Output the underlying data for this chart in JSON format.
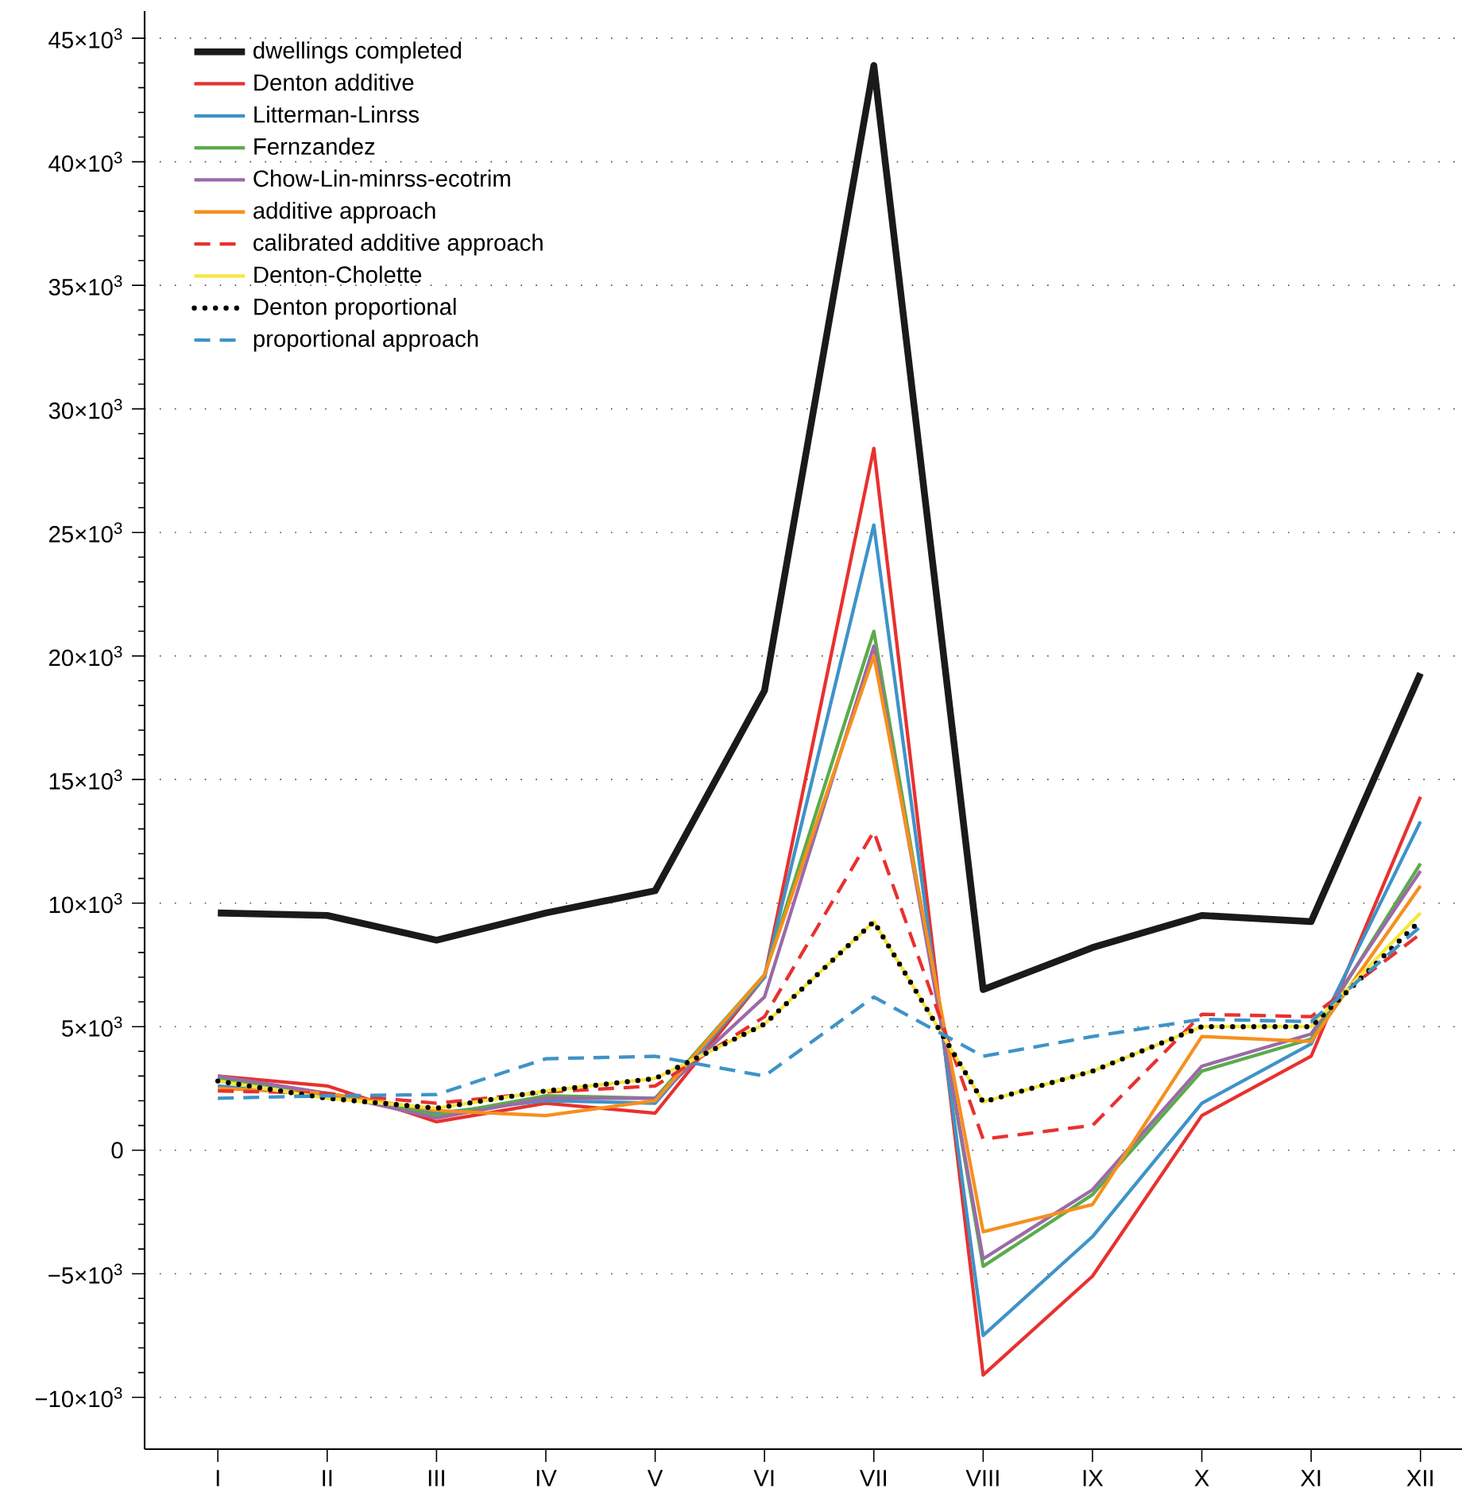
{
  "chart_data": {
    "type": "line",
    "categories": [
      "I",
      "II",
      "III",
      "IV",
      "V",
      "VI",
      "VII",
      "VIII",
      "IX",
      "X",
      "XI",
      "XII"
    ],
    "series": [
      {
        "name": "dwellings completed",
        "color": "#1a1a1a",
        "line_style": "solid",
        "values": [
          9600,
          9500,
          8500,
          9600,
          10500,
          18600,
          43900,
          6500,
          8200,
          9500,
          9250,
          19300
        ]
      },
      {
        "name": "Denton additive",
        "color": "#e8312f",
        "line_style": "solid",
        "values": [
          3000,
          2600,
          1150,
          1900,
          1500,
          7000,
          28400,
          -9100,
          -5100,
          1400,
          3800,
          14300
        ]
      },
      {
        "name": "Litterman-Linrss",
        "color": "#3e93c8",
        "line_style": "solid",
        "values": [
          2600,
          2200,
          1500,
          2000,
          1900,
          7000,
          25300,
          -7500,
          -3500,
          1900,
          4300,
          13300
        ]
      },
      {
        "name": "Fernzandez",
        "color": "#5bab4b",
        "line_style": "solid",
        "values": [
          2900,
          2300,
          1400,
          2200,
          2100,
          7100,
          21000,
          -4700,
          -1800,
          3200,
          4500,
          11600
        ]
      },
      {
        "name": "Chow-Lin-minrss-ecotrim",
        "color": "#9b6aa8",
        "line_style": "solid",
        "values": [
          3000,
          2300,
          1300,
          2100,
          2100,
          6200,
          20400,
          -4400,
          -1600,
          3400,
          4700,
          11300
        ]
      },
      {
        "name": "additive approach",
        "color": "#f5901e",
        "line_style": "solid",
        "values": [
          2500,
          2300,
          1600,
          1400,
          2000,
          7100,
          20000,
          -3300,
          -2200,
          4600,
          4400,
          10700
        ]
      },
      {
        "name": "calibrated additive approach",
        "color": "#e8312f",
        "line_style": "dashed",
        "values": [
          2400,
          2300,
          1900,
          2350,
          2600,
          5400,
          12900,
          450,
          1000,
          5500,
          5400,
          8750
        ]
      },
      {
        "name": "Denton-Cholette",
        "color": "#f5e63c",
        "line_style": "solid",
        "values": [
          2800,
          2100,
          1700,
          2400,
          2900,
          5100,
          9250,
          1950,
          3200,
          5000,
          5000,
          9600
        ]
      },
      {
        "name": "Denton proportional",
        "color": "#000000",
        "line_style": "dotted",
        "values": [
          2800,
          2100,
          1700,
          2400,
          2900,
          5100,
          9250,
          1950,
          3200,
          5000,
          5000,
          9300
        ]
      },
      {
        "name": "proportional approach",
        "color": "#3e93c8",
        "line_style": "dashed",
        "values": [
          2100,
          2200,
          2250,
          3700,
          3800,
          3000,
          6200,
          3800,
          4600,
          5300,
          5200,
          9050
        ]
      }
    ],
    "ylim": [
      -12100,
      46100
    ],
    "yticks": [
      {
        "value": -10000,
        "label": "−10×10$^{3}$"
      },
      {
        "value": -5000,
        "label": "−5×10$^{3}$"
      },
      0,
      {
        "value": 5000,
        "label": "5×10$^{3}$"
      },
      {
        "value": 10000,
        "label": "10×10$^{3}$"
      },
      {
        "value": 15000,
        "label": "15×10$^{3}$"
      },
      {
        "value": 20000,
        "label": "20×10$^{3}$"
      },
      {
        "value": 25000,
        "label": "25×10$^{3}$"
      },
      {
        "value": 30000,
        "label": "30×10$^{3}$"
      },
      {
        "value": 35000,
        "label": "35×10$^{3}$"
      },
      {
        "value": 40000,
        "label": "40×10$^{3}$"
      },
      {
        "value": 45000,
        "label": "45×10$^{3}$"
      }
    ],
    "grid": "y",
    "legend": "top left"
  }
}
